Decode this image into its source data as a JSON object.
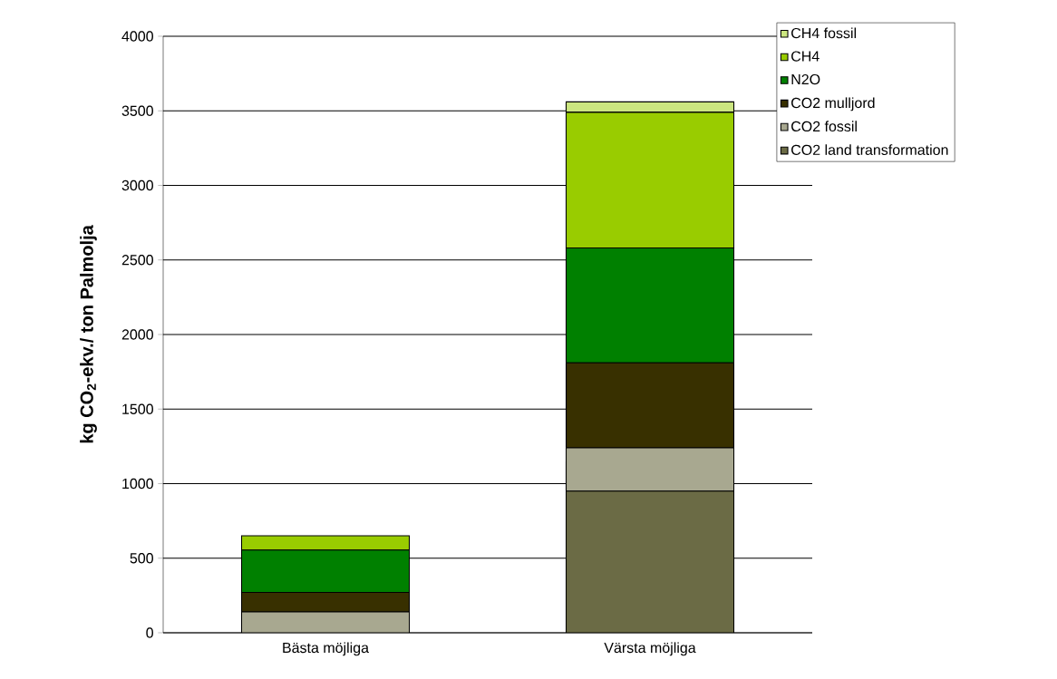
{
  "chart_data": {
    "type": "bar",
    "stacked": true,
    "ylabel": "kg CO$_{2}$-ekv./ ton Palmolja",
    "categories": [
      "Bästa möjliga",
      "Värsta möjliga"
    ],
    "series": [
      {
        "name": "CO2 land transformation",
        "color": "#6b6b45",
        "values": [
          0,
          950
        ]
      },
      {
        "name": "CO2 fossil",
        "color": "#a8a890",
        "values": [
          140,
          290
        ]
      },
      {
        "name": "CO2 mulljord",
        "color": "#383000",
        "values": [
          130,
          570
        ]
      },
      {
        "name": "N2O",
        "color": "#008000",
        "values": [
          285,
          770
        ]
      },
      {
        "name": "CH4",
        "color": "#99cc00",
        "values": [
          95,
          910
        ]
      },
      {
        "name": "CH4 fossil",
        "color": "#cce680",
        "values": [
          0,
          70
        ]
      }
    ],
    "ylim": [
      0,
      4000
    ],
    "yticks": [
      0,
      500,
      1000,
      1500,
      2000,
      2500,
      3000,
      3500,
      4000
    ],
    "grid": "y",
    "legend": "top right"
  }
}
